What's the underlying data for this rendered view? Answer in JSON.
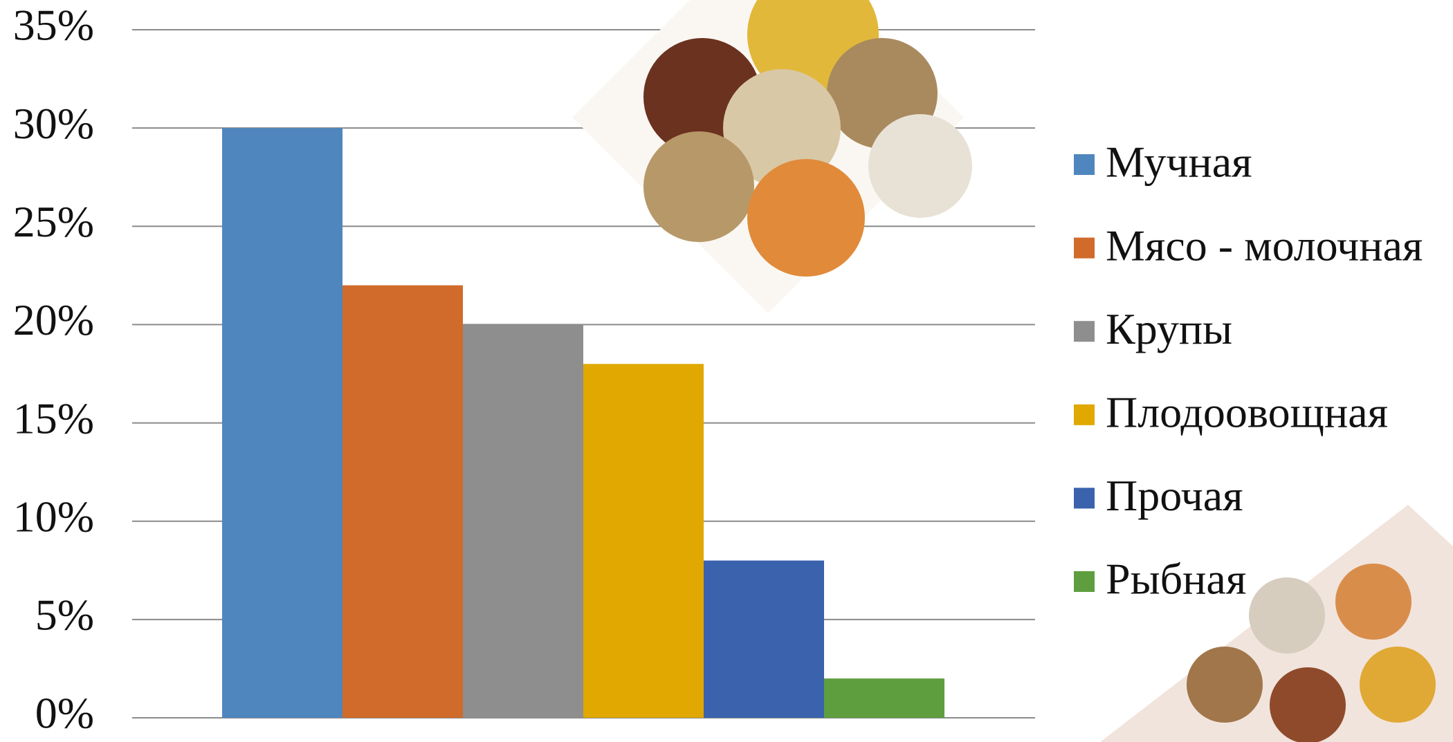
{
  "chart_data": {
    "type": "bar",
    "series": [
      {
        "name": "Мучная",
        "color": "#4f86be",
        "values": [
          30
        ]
      },
      {
        "name": "Мясо - молочная",
        "color": "#d06b2b",
        "values": [
          22
        ]
      },
      {
        "name": "Крупы",
        "color": "#8e8e8e",
        "values": [
          20
        ]
      },
      {
        "name": "Плодоовощная",
        "color": "#e0a800",
        "values": [
          18
        ]
      },
      {
        "name": "Прочая",
        "color": "#3a62ad",
        "values": [
          8
        ]
      },
      {
        "name": "Рыбная",
        "color": "#5f9e3f",
        "values": [
          2
        ]
      }
    ],
    "ylim": [
      0,
      35
    ],
    "yticks": [
      {
        "value": 0,
        "label": "0%"
      },
      {
        "value": 5,
        "label": "5%"
      },
      {
        "value": 10,
        "label": "10%"
      },
      {
        "value": 15,
        "label": "15%"
      },
      {
        "value": 20,
        "label": "20%"
      },
      {
        "value": 25,
        "label": "25%"
      },
      {
        "value": 30,
        "label": "30%"
      },
      {
        "value": 35,
        "label": "35%"
      }
    ],
    "grid": true,
    "legend": "right"
  }
}
